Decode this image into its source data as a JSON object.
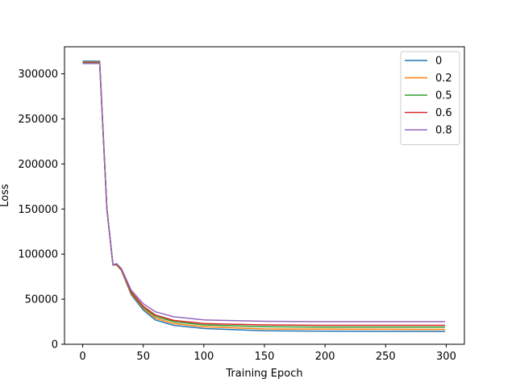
{
  "chart_data": {
    "type": "line",
    "title": "",
    "xlabel": "Training Epoch",
    "ylabel": "Loss",
    "xlim": [
      -15,
      315
    ],
    "ylim": [
      0,
      330000
    ],
    "xticks": [
      0,
      50,
      100,
      150,
      200,
      250,
      300
    ],
    "yticks": [
      0,
      50000,
      100000,
      150000,
      200000,
      250000,
      300000
    ],
    "grid": false,
    "legend_position": "top-right",
    "x": [
      0,
      14,
      20,
      25,
      28,
      32,
      40,
      50,
      60,
      75,
      100,
      150,
      200,
      250,
      299
    ],
    "series": [
      {
        "name": "0",
        "color": "#1f77b4",
        "values": [
          314000,
          314000,
          150000,
          88000,
          88000,
          82000,
          55000,
          38000,
          27000,
          21000,
          17500,
          15000,
          14500,
          14300,
          14200
        ]
      },
      {
        "name": "0.2",
        "color": "#ff7f0e",
        "values": [
          313000,
          313000,
          150000,
          88000,
          88000,
          82000,
          56000,
          40000,
          29000,
          23000,
          19500,
          17000,
          16700,
          16600,
          16500
        ]
      },
      {
        "name": "0.5",
        "color": "#2ca02c",
        "values": [
          312500,
          312500,
          150000,
          88000,
          88500,
          82500,
          57000,
          41000,
          31000,
          25000,
          21500,
          19500,
          19000,
          19000,
          19000
        ]
      },
      {
        "name": "0.6",
        "color": "#d62728",
        "values": [
          312000,
          312000,
          150000,
          88000,
          89000,
          83000,
          58000,
          42000,
          32500,
          26500,
          23000,
          21500,
          21000,
          21000,
          21000
        ]
      },
      {
        "name": "0.8",
        "color": "#9467bd",
        "values": [
          311500,
          311500,
          150000,
          88000,
          89500,
          84000,
          60000,
          45000,
          36000,
          30500,
          27000,
          25500,
          25000,
          25000,
          25000
        ]
      }
    ]
  }
}
